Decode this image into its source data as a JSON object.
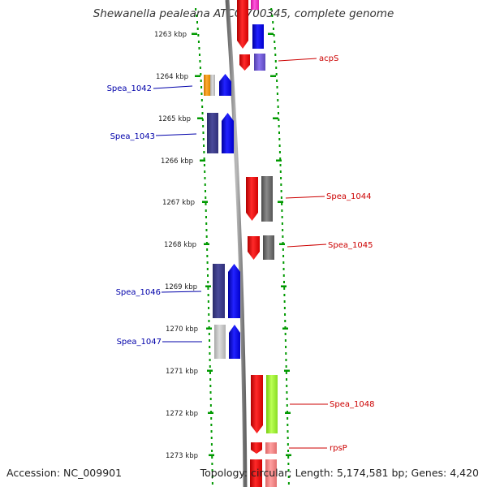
{
  "title": "Shewanella pealeana ATCC 700345, complete genome",
  "accession": "Accession: NC_009901",
  "topology": "Topology: circular; Length: 5,174,581 bp; Genes: 4,420",
  "ruler": [
    {
      "label": "1263 kbp"
    },
    {
      "label": "1264 kbp"
    },
    {
      "label": "1265 kbp"
    },
    {
      "label": "1266 kbp"
    },
    {
      "label": "1267 kbp"
    },
    {
      "label": "1268 kbp"
    },
    {
      "label": "1269 kbp"
    },
    {
      "label": "1270 kbp"
    },
    {
      "label": "1271 kbp"
    },
    {
      "label": "1272 kbp"
    },
    {
      "label": "1273 kbp"
    }
  ],
  "gene_labels": [
    {
      "name": "acpS",
      "side": "right",
      "color": "#cc0000"
    },
    {
      "name": "Spea_1042",
      "side": "left",
      "color": "#0000aa"
    },
    {
      "name": "Spea_1043",
      "side": "left",
      "color": "#0000aa"
    },
    {
      "name": "Spea_1044",
      "side": "right",
      "color": "#cc0000"
    },
    {
      "name": "Spea_1045",
      "side": "right",
      "color": "#cc0000"
    },
    {
      "name": "Spea_1046",
      "side": "left",
      "color": "#0000aa"
    },
    {
      "name": "Spea_1047",
      "side": "left",
      "color": "#0000aa"
    },
    {
      "name": "Spea_1048",
      "side": "right",
      "color": "#cc0000"
    },
    {
      "name": "rpsP",
      "side": "right",
      "color": "#cc0000"
    }
  ],
  "colors": {
    "forward_gene": "#0000ff",
    "reverse_gene": "#ff0000",
    "cog_purple": "#3f3f8f",
    "cog_grey": "#707070",
    "cog_orange": "#ff9900",
    "cog_lightgrey": "#c8c8c8",
    "cog_green": "#99ff33",
    "cog_pink": "#ff7f7f",
    "cog_magenta": "#ff33cc",
    "cog_violet": "#6a52cc",
    "backbone": "#888888",
    "ruler_ticks": "#009900"
  }
}
